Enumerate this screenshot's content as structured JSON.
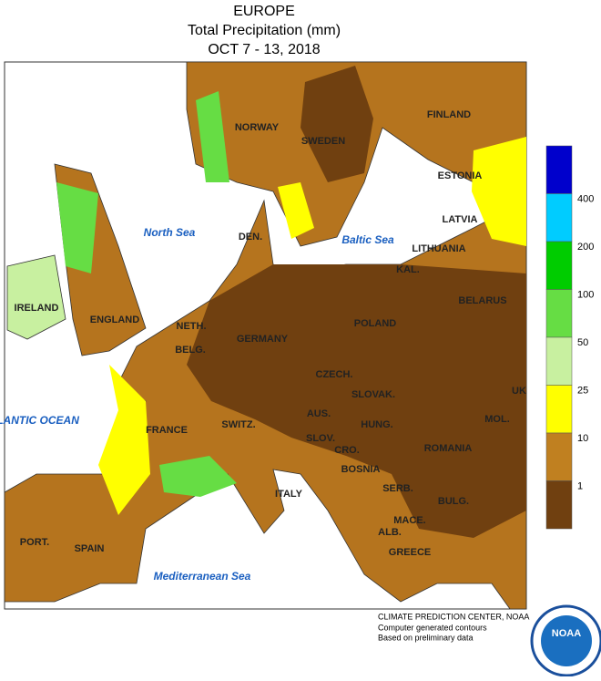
{
  "header": {
    "title": "EUROPE",
    "subtitle": "Total Precipitation (mm)",
    "dates": "OCT 7 - 13, 2018"
  },
  "legend": {
    "colors": [
      "#0000cc",
      "#00ccff",
      "#00cc00",
      "#66dd44",
      "#c8f0a0",
      "#ffff00",
      "#c08020",
      "#704010"
    ],
    "labels": [
      "400",
      "200",
      "100",
      "50",
      "25",
      "10",
      "1"
    ]
  },
  "countries": [
    "NORWAY",
    "SWEDEN",
    "FINLAND",
    "ESTONIA",
    "LATVIA",
    "LITHUANIA",
    "KAL.",
    "BELARUS",
    "DEN.",
    "IRELAND",
    "ENGLAND",
    "NETH.",
    "BELG.",
    "GERMANY",
    "POLAND",
    "CZECH.",
    "SLOVAK.",
    "UK",
    "AUS.",
    "HUNG.",
    "MOL.",
    "FRANCE",
    "SWITZ.",
    "SLOV.",
    "CRO.",
    "ROMANIA",
    "BOSNIA",
    "SERB.",
    "ITALY",
    "BULG.",
    "MACE.",
    "ALB.",
    "GREECE",
    "PORT.",
    "SPAIN"
  ],
  "seas": [
    "North Sea",
    "Baltic Sea",
    "ATLANTIC OCEAN",
    "Mediterranean Sea"
  ],
  "footer": {
    "lines": [
      "CLIMATE PREDICTION CENTER, NOAA",
      "Computer generated contours",
      "Based on preliminary data"
    ],
    "logo": "NOAA"
  }
}
